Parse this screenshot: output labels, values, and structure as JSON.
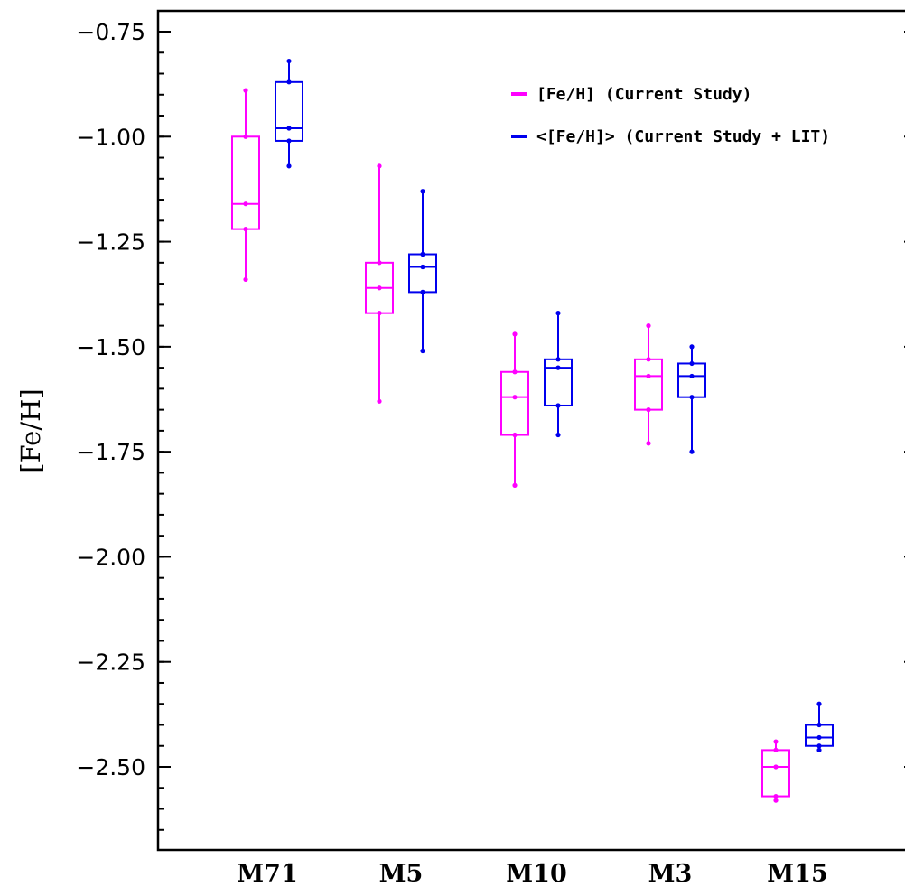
{
  "chart_data": {
    "type": "box",
    "title": "",
    "xlabel": "",
    "ylabel": "[Fe/H]",
    "categories": [
      "M71",
      "M5",
      "M10",
      "M3",
      "M15"
    ],
    "ylim": [
      -2.7,
      -0.7
    ],
    "yticks": [
      -0.75,
      -1.0,
      -1.25,
      -1.5,
      -1.75,
      -2.0,
      -2.25,
      -2.5
    ],
    "ytick_labels": [
      "−0.75",
      "−1.00",
      "−1.25",
      "−1.50",
      "−1.75",
      "−2.00",
      "−2.25",
      "−2.50"
    ],
    "grid": false,
    "legend_position": "top-right",
    "series": [
      {
        "name": "[Fe/H] (Current Study)",
        "color": "#ff00ff",
        "boxes": [
          {
            "category": "M71",
            "min": -1.34,
            "q1": -1.22,
            "median": -1.16,
            "q3": -1.0,
            "max": -0.89
          },
          {
            "category": "M5",
            "min": -1.63,
            "q1": -1.42,
            "median": -1.36,
            "q3": -1.3,
            "max": -1.07
          },
          {
            "category": "M10",
            "min": -1.83,
            "q1": -1.71,
            "median": -1.62,
            "q3": -1.56,
            "max": -1.47
          },
          {
            "category": "M3",
            "min": -1.73,
            "q1": -1.65,
            "median": -1.57,
            "q3": -1.53,
            "max": -1.45
          },
          {
            "category": "M15",
            "min": -2.58,
            "q1": -2.57,
            "median": -2.5,
            "q3": -2.46,
            "max": -2.44
          }
        ]
      },
      {
        "name": "<[Fe/H]> (Current Study + LIT)",
        "color": "#0000ee",
        "boxes": [
          {
            "category": "M71",
            "min": -1.07,
            "q1": -1.01,
            "median": -0.98,
            "q3": -0.87,
            "max": -0.82
          },
          {
            "category": "M5",
            "min": -1.51,
            "q1": -1.37,
            "median": -1.31,
            "q3": -1.28,
            "max": -1.13
          },
          {
            "category": "M10",
            "min": -1.71,
            "q1": -1.64,
            "median": -1.55,
            "q3": -1.53,
            "max": -1.42
          },
          {
            "category": "M3",
            "min": -1.75,
            "q1": -1.62,
            "median": -1.57,
            "q3": -1.54,
            "max": -1.5
          },
          {
            "category": "M15",
            "min": -2.46,
            "q1": -2.45,
            "median": -2.43,
            "q3": -2.4,
            "max": -2.35
          }
        ]
      }
    ]
  }
}
